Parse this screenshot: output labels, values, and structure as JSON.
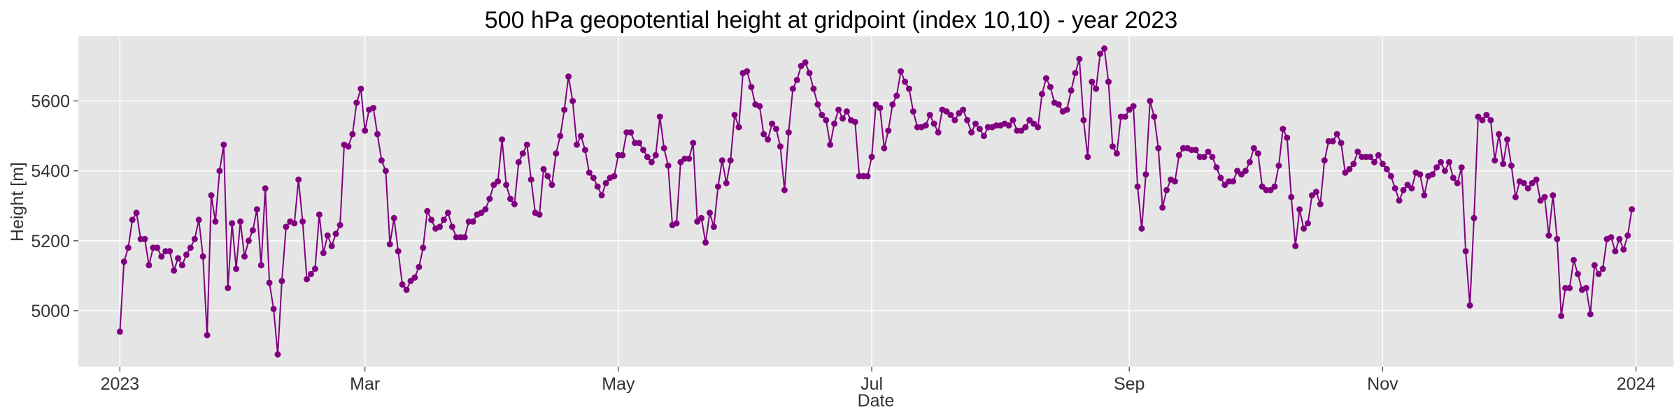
{
  "chart_data": {
    "type": "line",
    "title": "500 hPa geopotential height at gridpoint (index 10,10) - year 2023",
    "xlabel": "Date",
    "ylabel": "Height [m]",
    "xlim": [
      "2022-12-22",
      "2024-01-10"
    ],
    "ylim": [
      4840,
      5785
    ],
    "x_ticks": [
      {
        "date": "2023-01-01",
        "label": "2023"
      },
      {
        "date": "2023-03-01",
        "label": "Mar"
      },
      {
        "date": "2023-05-01",
        "label": "May"
      },
      {
        "date": "2023-07-01",
        "label": "Jul"
      },
      {
        "date": "2023-09-01",
        "label": "Sep"
      },
      {
        "date": "2023-11-01",
        "label": "Nov"
      },
      {
        "date": "2024-01-01",
        "label": "2024"
      }
    ],
    "y_ticks": [
      5000,
      5200,
      5400,
      5600
    ],
    "grid": true,
    "style": {
      "background": "#e5e5e5",
      "grid_color": "#ffffff",
      "line_color": "#800080",
      "marker": "circle"
    },
    "series": [
      {
        "start_date": "2023-01-01",
        "frequency": "daily",
        "values": [
          4940,
          5140,
          5180,
          5260,
          5280,
          5205,
          5205,
          5130,
          5180,
          5180,
          5155,
          5170,
          5170,
          5115,
          5150,
          5130,
          5160,
          5180,
          5205,
          5260,
          5155,
          4930,
          5330,
          5255,
          5400,
          5475,
          5065,
          5250,
          5120,
          5255,
          5155,
          5200,
          5230,
          5290,
          5130,
          5350,
          5080,
          5005,
          4875,
          5085,
          5240,
          5255,
          5250,
          5375,
          5255,
          5090,
          5105,
          5120,
          5275,
          5165,
          5215,
          5185,
          5220,
          5245,
          5475,
          5470,
          5505,
          5595,
          5635,
          5515,
          5575,
          5580,
          5505,
          5430,
          5400,
          5190,
          5265,
          5170,
          5075,
          5060,
          5085,
          5095,
          5125,
          5180,
          5285,
          5260,
          5235,
          5240,
          5260,
          5280,
          5240,
          5210,
          5210,
          5210,
          5255,
          5255,
          5275,
          5280,
          5290,
          5320,
          5360,
          5370,
          5490,
          5360,
          5320,
          5305,
          5425,
          5450,
          5475,
          5375,
          5280,
          5275,
          5405,
          5385,
          5360,
          5450,
          5500,
          5575,
          5670,
          5600,
          5475,
          5500,
          5460,
          5395,
          5380,
          5355,
          5330,
          5365,
          5380,
          5385,
          5445,
          5445,
          5510,
          5510,
          5480,
          5480,
          5460,
          5440,
          5425,
          5445,
          5555,
          5465,
          5415,
          5245,
          5250,
          5425,
          5435,
          5435,
          5480,
          5255,
          5265,
          5195,
          5280,
          5240,
          5355,
          5430,
          5365,
          5430,
          5560,
          5525,
          5680,
          5685,
          5640,
          5590,
          5585,
          5505,
          5490,
          5535,
          5520,
          5470,
          5345,
          5510,
          5635,
          5660,
          5700,
          5710,
          5680,
          5635,
          5590,
          5560,
          5545,
          5475,
          5535,
          5575,
          5550,
          5570,
          5545,
          5540,
          5385,
          5385,
          5385,
          5440,
          5590,
          5580,
          5465,
          5515,
          5590,
          5615,
          5685,
          5655,
          5635,
          5570,
          5525,
          5525,
          5530,
          5560,
          5535,
          5510,
          5575,
          5570,
          5560,
          5545,
          5565,
          5575,
          5545,
          5510,
          5535,
          5520,
          5500,
          5525,
          5525,
          5530,
          5530,
          5535,
          5530,
          5545,
          5515,
          5515,
          5525,
          5545,
          5535,
          5525,
          5620,
          5665,
          5640,
          5595,
          5590,
          5570,
          5575,
          5630,
          5680,
          5720,
          5545,
          5440,
          5655,
          5635,
          5735,
          5750,
          5655,
          5470,
          5450,
          5555,
          5555,
          5575,
          5585,
          5355,
          5235,
          5390,
          5600,
          5555,
          5465,
          5295,
          5345,
          5375,
          5370,
          5445,
          5465,
          5465,
          5460,
          5460,
          5440,
          5440,
          5455,
          5440,
          5410,
          5380,
          5360,
          5370,
          5370,
          5400,
          5390,
          5400,
          5425,
          5465,
          5450,
          5355,
          5345,
          5345,
          5355,
          5415,
          5520,
          5495,
          5325,
          5185,
          5290,
          5235,
          5250,
          5330,
          5340,
          5305,
          5430,
          5485,
          5485,
          5505,
          5480,
          5395,
          5405,
          5420,
          5455,
          5440,
          5440,
          5440,
          5425,
          5445,
          5420,
          5405,
          5385,
          5350,
          5315,
          5345,
          5360,
          5350,
          5395,
          5390,
          5330,
          5385,
          5390,
          5410,
          5425,
          5400,
          5425,
          5380,
          5365,
          5410,
          5170,
          5015,
          5265,
          5555,
          5545,
          5560,
          5545,
          5430,
          5505,
          5420,
          5490,
          5415,
          5325,
          5370,
          5365,
          5350,
          5365,
          5375,
          5315,
          5325,
          5215,
          5330,
          5205,
          4985,
          5065,
          5065,
          5145,
          5105,
          5060,
          5065,
          4990,
          5130,
          5105,
          5120,
          5205,
          5210,
          5170,
          5205,
          5175,
          5215,
          5290
        ]
      }
    ]
  }
}
